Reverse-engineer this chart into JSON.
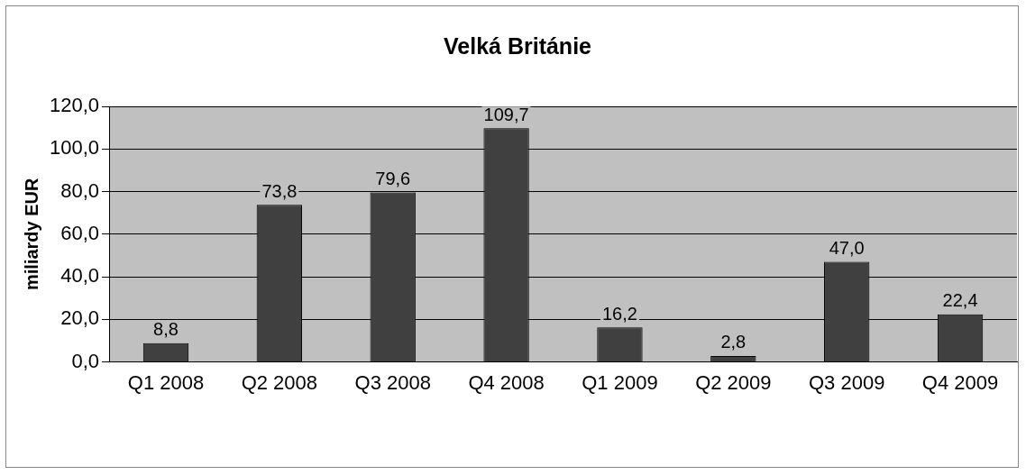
{
  "chart_data": {
    "type": "bar",
    "title": "Velká Británie",
    "ylabel": "miliardy EUR",
    "categories": [
      "Q1 2008",
      "Q2 2008",
      "Q3 2008",
      "Q4 2008",
      "Q1 2009",
      "Q2 2009",
      "Q3 2009",
      "Q4 2009"
    ],
    "values": [
      8.8,
      73.8,
      79.6,
      109.7,
      16.2,
      2.8,
      47.0,
      22.4
    ],
    "value_labels": [
      "8,8",
      "73,8",
      "79,6",
      "109,7",
      "16,2",
      "2,8",
      "47,0",
      "22,4"
    ],
    "color": "#404040",
    "ylim": [
      0,
      120
    ],
    "yticks": [
      {
        "value": 0,
        "label": "0,0"
      },
      {
        "value": 20,
        "label": "20,0"
      },
      {
        "value": 40,
        "label": "40,0"
      },
      {
        "value": 60,
        "label": "60,0"
      },
      {
        "value": 80,
        "label": "80,0"
      },
      {
        "value": 100,
        "label": "100,0"
      },
      {
        "value": 120,
        "label": "120,0"
      }
    ],
    "grid": "y",
    "legend": false
  }
}
